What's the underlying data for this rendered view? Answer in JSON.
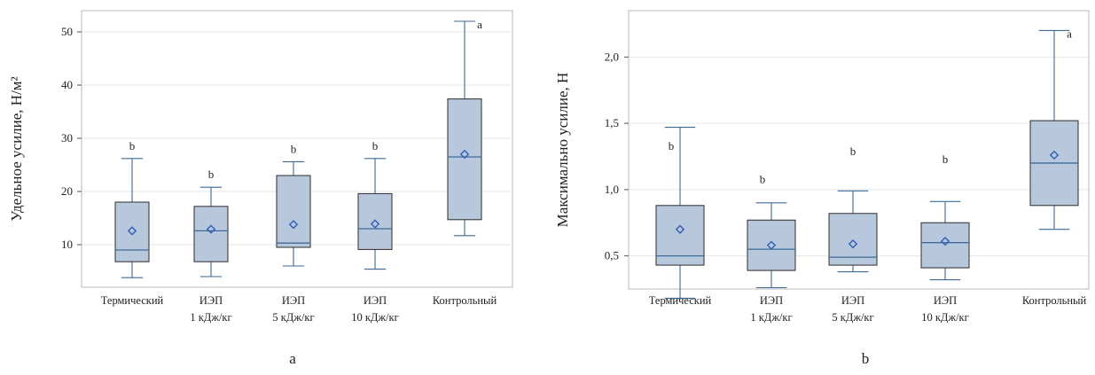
{
  "chart_data": [
    {
      "type": "box",
      "panel_label": "a",
      "ylabel": "Удельное усилие, Н/м²",
      "yticks": [
        10,
        20,
        30,
        40,
        50
      ],
      "ytick_labels": [
        "10",
        "20",
        "30",
        "40",
        "50"
      ],
      "ylim": [
        2,
        54
      ],
      "grid": true,
      "categories": [
        {
          "lines": [
            "Термический"
          ]
        },
        {
          "lines": [
            "ИЭП",
            "1 кДж/кг"
          ]
        },
        {
          "lines": [
            "ИЭП",
            "5 кДж/кг"
          ]
        },
        {
          "lines": [
            "ИЭП",
            "10 кДж/кг"
          ]
        },
        {
          "lines": [
            "Контрольный"
          ]
        }
      ],
      "boxes": [
        {
          "min": 3.8,
          "q1": 6.8,
          "median": 9.0,
          "q3": 18.0,
          "max": 26.2,
          "mean": 12.6,
          "sig": "b"
        },
        {
          "min": 4.0,
          "q1": 6.8,
          "median": 12.6,
          "q3": 17.2,
          "max": 20.8,
          "mean": 12.9,
          "sig": "b"
        },
        {
          "min": 6.0,
          "q1": 9.5,
          "median": 10.3,
          "q3": 23.0,
          "max": 25.6,
          "mean": 13.8,
          "sig": "b"
        },
        {
          "min": 5.4,
          "q1": 9.1,
          "median": 13.0,
          "q3": 19.6,
          "max": 26.2,
          "mean": 13.9,
          "sig": "b"
        },
        {
          "min": 11.7,
          "q1": 14.7,
          "median": 26.5,
          "q3": 37.4,
          "max": 52.0,
          "mean": 27.0,
          "sig": "a"
        }
      ]
    },
    {
      "type": "box",
      "panel_label": "b",
      "ylabel": "Максимально усилие, Н",
      "yticks": [
        0.5,
        1.0,
        1.5,
        2.0
      ],
      "ytick_labels": [
        "0,5",
        "1,0",
        "1,5",
        "2,0"
      ],
      "ylim": [
        0.25,
        2.35
      ],
      "grid": true,
      "categories": [
        {
          "lines": [
            "Термический"
          ]
        },
        {
          "lines": [
            "ИЭП",
            "1 кДж/кг"
          ]
        },
        {
          "lines": [
            "ИЭП",
            "5 кДж/кг"
          ]
        },
        {
          "lines": [
            "ИЭП",
            "10 кДж/кг"
          ]
        },
        {
          "lines": [
            "Контрольный"
          ]
        }
      ],
      "boxes": [
        {
          "min": 0.18,
          "q1": 0.43,
          "median": 0.5,
          "q3": 0.88,
          "max": 1.47,
          "mean": 0.7,
          "sig": "b"
        },
        {
          "min": 0.26,
          "q1": 0.39,
          "median": 0.55,
          "q3": 0.77,
          "max": 0.9,
          "mean": 0.58,
          "sig": "b"
        },
        {
          "min": 0.38,
          "q1": 0.43,
          "median": 0.49,
          "q3": 0.82,
          "max": 0.99,
          "mean": 0.59,
          "sig": "b"
        },
        {
          "min": 0.32,
          "q1": 0.41,
          "median": 0.6,
          "q3": 0.75,
          "max": 0.91,
          "mean": 0.61,
          "sig": "b"
        },
        {
          "min": 0.7,
          "q1": 0.88,
          "median": 1.2,
          "q3": 1.52,
          "max": 2.2,
          "mean": 1.26,
          "sig": "a"
        }
      ]
    }
  ]
}
